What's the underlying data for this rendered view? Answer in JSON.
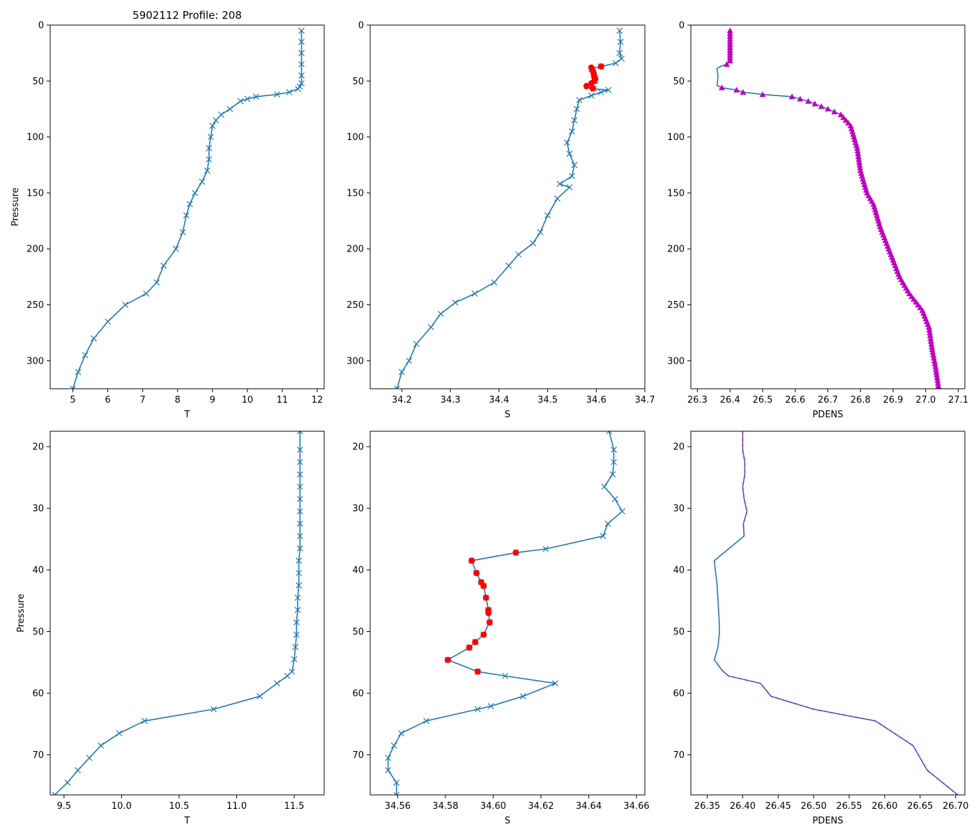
{
  "colors": {
    "line": "#1f77b4",
    "flag": "#ff0000",
    "density": "#bf00bf"
  },
  "chart_data": [
    {
      "type": "line",
      "title": "5902112 Profile: 208",
      "xlabel": "T",
      "ylabel": "Pressure",
      "xlim": [
        4.35,
        12.2
      ],
      "ylim": [
        325,
        0
      ],
      "xticks": [
        "5",
        "6",
        "7",
        "8",
        "9",
        "10",
        "11",
        "12"
      ],
      "yticks": [
        "0",
        "50",
        "100",
        "150",
        "200",
        "250",
        "300"
      ],
      "marker": "x",
      "series": [
        {
          "name": "T",
          "points": [
            [
              11.55,
              5
            ],
            [
              11.55,
              15
            ],
            [
              11.55,
              25
            ],
            [
              11.55,
              35
            ],
            [
              11.55,
              45
            ],
            [
              11.55,
              52
            ],
            [
              11.5,
              55
            ],
            [
              11.45,
              57
            ],
            [
              11.2,
              60
            ],
            [
              10.85,
              62
            ],
            [
              10.25,
              64
            ],
            [
              10.0,
              66
            ],
            [
              9.8,
              68
            ],
            [
              9.5,
              75
            ],
            [
              9.25,
              80
            ],
            [
              9.1,
              85
            ],
            [
              9.0,
              90
            ],
            [
              8.95,
              100
            ],
            [
              8.9,
              110
            ],
            [
              8.9,
              120
            ],
            [
              8.85,
              130
            ],
            [
              8.7,
              140
            ],
            [
              8.5,
              150
            ],
            [
              8.35,
              160
            ],
            [
              8.25,
              170
            ],
            [
              8.15,
              185
            ],
            [
              7.95,
              200
            ],
            [
              7.6,
              215
            ],
            [
              7.4,
              230
            ],
            [
              7.1,
              240
            ],
            [
              6.5,
              250
            ],
            [
              6.0,
              265
            ],
            [
              5.6,
              280
            ],
            [
              5.35,
              295
            ],
            [
              5.15,
              310
            ],
            [
              5.0,
              325
            ]
          ]
        }
      ]
    },
    {
      "type": "line",
      "title": "",
      "xlabel": "S",
      "ylabel": "",
      "xlim": [
        34.135,
        34.7
      ],
      "ylim": [
        325,
        0
      ],
      "xticks": [
        "34.2",
        "34.3",
        "34.4",
        "34.5",
        "34.6",
        "34.7"
      ],
      "yticks": [
        "0",
        "50",
        "100",
        "150",
        "200",
        "250",
        "300"
      ],
      "marker": "x",
      "series": [
        {
          "name": "S",
          "points": [
            [
              34.648,
              5
            ],
            [
              34.65,
              15
            ],
            [
              34.648,
              25
            ],
            [
              34.652,
              30
            ],
            [
              34.64,
              34
            ],
            [
              34.61,
              37
            ],
            [
              34.59,
              39
            ],
            [
              34.595,
              45
            ],
            [
              34.598,
              50
            ],
            [
              34.582,
              55
            ],
            [
              34.595,
              57
            ],
            [
              34.625,
              58
            ],
            [
              34.61,
              60
            ],
            [
              34.59,
              63
            ],
            [
              34.565,
              67
            ],
            [
              34.56,
              75
            ],
            [
              34.555,
              85
            ],
            [
              34.55,
              95
            ],
            [
              34.54,
              105
            ],
            [
              34.545,
              115
            ],
            [
              34.555,
              125
            ],
            [
              34.55,
              135
            ],
            [
              34.525,
              142
            ],
            [
              34.545,
              145
            ],
            [
              34.52,
              155
            ],
            [
              34.5,
              170
            ],
            [
              34.485,
              185
            ],
            [
              34.47,
              195
            ],
            [
              34.44,
              205
            ],
            [
              34.42,
              215
            ],
            [
              34.39,
              230
            ],
            [
              34.35,
              240
            ],
            [
              34.31,
              248
            ],
            [
              34.28,
              258
            ],
            [
              34.26,
              270
            ],
            [
              34.23,
              285
            ],
            [
              34.215,
              300
            ],
            [
              34.2,
              310
            ],
            [
              34.19,
              325
            ]
          ]
        }
      ],
      "flagged": [
        [
          34.61,
          37
        ],
        [
          34.59,
          38
        ],
        [
          34.592,
          40
        ],
        [
          34.594,
          42
        ],
        [
          34.595,
          44
        ],
        [
          34.596,
          46
        ],
        [
          34.598,
          48
        ],
        [
          34.596,
          50
        ],
        [
          34.59,
          52
        ],
        [
          34.58,
          54.5
        ],
        [
          34.593,
          56.5
        ]
      ]
    },
    {
      "type": "line",
      "title": "",
      "xlabel": "PDENS",
      "ylabel": "",
      "xlim": [
        26.28,
        27.12
      ],
      "ylim": [
        325,
        0
      ],
      "xticks": [
        "26.3",
        "26.4",
        "26.5",
        "26.6",
        "26.7",
        "26.8",
        "26.9",
        "27.0",
        "27.1"
      ],
      "yticks": [
        "0",
        "50",
        "100",
        "150",
        "200",
        "250",
        "300"
      ],
      "marker": "^",
      "series": [
        {
          "name": "PDENS",
          "points": [
            [
              26.4,
              5
            ],
            [
              26.4,
              20
            ],
            [
              26.4,
              32
            ],
            [
              26.39,
              35
            ],
            [
              26.37,
              37
            ],
            [
              26.36,
              39
            ],
            [
              26.363,
              45
            ],
            [
              26.362,
              50
            ],
            [
              26.36,
              54
            ],
            [
              26.375,
              56
            ],
            [
              26.42,
              58
            ],
            [
              26.44,
              60
            ],
            [
              26.5,
              62
            ],
            [
              26.59,
              64
            ],
            [
              26.64,
              68
            ],
            [
              26.7,
              75
            ],
            [
              26.74,
              80
            ],
            [
              26.77,
              90
            ],
            [
              26.79,
              110
            ],
            [
              26.8,
              130
            ],
            [
              26.82,
              150
            ],
            [
              26.84,
              160
            ],
            [
              26.86,
              180
            ],
            [
              26.88,
              195
            ],
            [
              26.9,
              210
            ],
            [
              26.92,
              225
            ],
            [
              26.95,
              240
            ],
            [
              26.99,
              255
            ],
            [
              27.01,
              270
            ],
            [
              27.02,
              290
            ],
            [
              27.03,
              305
            ],
            [
              27.04,
              325
            ]
          ]
        }
      ]
    },
    {
      "type": "line",
      "title": "",
      "xlabel": "T",
      "ylabel": "Pressure",
      "xlim": [
        9.38,
        11.76
      ],
      "ylim": [
        76.5,
        17.5
      ],
      "xticks": [
        "9.5",
        "10.0",
        "10.5",
        "11.0",
        "11.5"
      ],
      "yticks": [
        "20",
        "30",
        "40",
        "50",
        "60",
        "70"
      ],
      "marker": "x",
      "series": [
        {
          "name": "T",
          "points": [
            [
              11.55,
              17.5
            ],
            [
              11.55,
              20.5
            ],
            [
              11.55,
              22.5
            ],
            [
              11.55,
              24.5
            ],
            [
              11.55,
              26.5
            ],
            [
              11.55,
              28.5
            ],
            [
              11.55,
              30.5
            ],
            [
              11.55,
              32.5
            ],
            [
              11.55,
              34.5
            ],
            [
              11.55,
              36.5
            ],
            [
              11.54,
              38.5
            ],
            [
              11.54,
              40.5
            ],
            [
              11.54,
              42.5
            ],
            [
              11.53,
              44.5
            ],
            [
              11.53,
              46.5
            ],
            [
              11.52,
              48.5
            ],
            [
              11.52,
              50.5
            ],
            [
              11.51,
              52.5
            ],
            [
              11.5,
              54.5
            ],
            [
              11.48,
              56.5
            ],
            [
              11.44,
              57.2
            ],
            [
              11.35,
              58.4
            ],
            [
              11.2,
              60.5
            ],
            [
              10.8,
              62.6
            ],
            [
              10.2,
              64.5
            ],
            [
              9.98,
              66.5
            ],
            [
              9.82,
              68.5
            ],
            [
              9.72,
              70.5
            ],
            [
              9.62,
              72.5
            ],
            [
              9.53,
              74.5
            ],
            [
              9.42,
              76.5
            ]
          ]
        }
      ]
    },
    {
      "type": "line",
      "title": "",
      "xlabel": "S",
      "ylabel": "",
      "xlim": [
        34.5485,
        34.6635
      ],
      "ylim": [
        76.5,
        17.5
      ],
      "xticks": [
        "34.56",
        "34.58",
        "34.60",
        "34.62",
        "34.64",
        "34.66"
      ],
      "yticks": [
        "20",
        "30",
        "40",
        "50",
        "60",
        "70"
      ],
      "marker": "x",
      "series": [
        {
          "name": "S",
          "points": [
            [
              34.6485,
              17.5
            ],
            [
              34.6505,
              20.5
            ],
            [
              34.6505,
              22.5
            ],
            [
              34.65,
              24.5
            ],
            [
              34.6465,
              26.5
            ],
            [
              34.651,
              28.5
            ],
            [
              34.654,
              30.5
            ],
            [
              34.648,
              32.5
            ],
            [
              34.646,
              34.5
            ],
            [
              34.622,
              36.6
            ],
            [
              34.6095,
              37.2
            ],
            [
              34.591,
              38.5
            ],
            [
              34.593,
              40.5
            ],
            [
              34.595,
              42
            ],
            [
              34.596,
              42.6
            ],
            [
              34.597,
              44.5
            ],
            [
              34.598,
              46.5
            ],
            [
              34.5985,
              48.5
            ],
            [
              34.596,
              50.5
            ],
            [
              34.5925,
              51.7
            ],
            [
              34.59,
              52.6
            ],
            [
              34.581,
              54.6
            ],
            [
              34.5935,
              56.5
            ],
            [
              34.605,
              57.2
            ],
            [
              34.626,
              58.4
            ],
            [
              34.6125,
              60.5
            ],
            [
              34.599,
              62.1
            ],
            [
              34.5935,
              62.6
            ],
            [
              34.572,
              64.5
            ],
            [
              34.5615,
              66.5
            ],
            [
              34.5585,
              68.5
            ],
            [
              34.556,
              70.5
            ],
            [
              34.556,
              72.5
            ],
            [
              34.5595,
              74.5
            ],
            [
              34.5595,
              76.5
            ]
          ]
        }
      ],
      "flagged": [
        [
          34.6095,
          37.2
        ],
        [
          34.591,
          38.5
        ],
        [
          34.593,
          40.5
        ],
        [
          34.595,
          42
        ],
        [
          34.596,
          42.6
        ],
        [
          34.597,
          44.5
        ],
        [
          34.598,
          46.5
        ],
        [
          34.598,
          47
        ],
        [
          34.5985,
          48.5
        ],
        [
          34.596,
          50.5
        ],
        [
          34.5925,
          51.7
        ],
        [
          34.59,
          52.6
        ],
        [
          34.581,
          54.6
        ],
        [
          34.5935,
          56.5
        ]
      ]
    },
    {
      "type": "line",
      "title": "",
      "xlabel": "PDENS",
      "ylabel": "",
      "xlim": [
        26.327,
        26.713
      ],
      "ylim": [
        76.5,
        17.5
      ],
      "xticks": [
        "26.35",
        "26.40",
        "26.45",
        "26.50",
        "26.55",
        "26.60",
        "26.65",
        "26.70"
      ],
      "yticks": [
        "20",
        "30",
        "40",
        "50",
        "60",
        "70"
      ],
      "marker": "dash",
      "series": [
        {
          "name": "PDENS",
          "points": [
            [
              26.4,
              17.5
            ],
            [
              26.4,
              20.5
            ],
            [
              26.403,
              22.5
            ],
            [
              26.403,
              24.5
            ],
            [
              26.4,
              26.5
            ],
            [
              26.402,
              28.5
            ],
            [
              26.406,
              30.5
            ],
            [
              26.401,
              32.5
            ],
            [
              26.402,
              34.5
            ],
            [
              26.38,
              36.6
            ],
            [
              26.36,
              38.5
            ],
            [
              26.364,
              42.5
            ],
            [
              26.366,
              46.5
            ],
            [
              26.367,
              48.5
            ],
            [
              26.367,
              50.5
            ],
            [
              26.365,
              52.6
            ],
            [
              26.36,
              54.6
            ],
            [
              26.371,
              56.3
            ],
            [
              26.38,
              57.2
            ],
            [
              26.425,
              58.4
            ],
            [
              26.44,
              60.5
            ],
            [
              26.5,
              62.6
            ],
            [
              26.587,
              64.5
            ],
            [
              26.64,
              68.5
            ],
            [
              26.66,
              72.5
            ],
            [
              26.703,
              76.5
            ]
          ]
        }
      ]
    }
  ]
}
